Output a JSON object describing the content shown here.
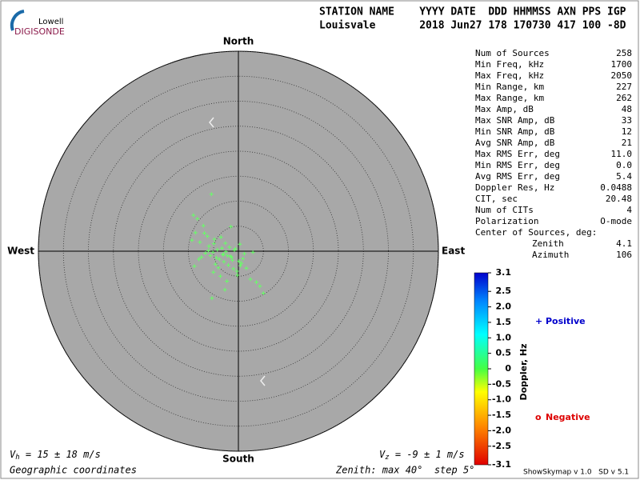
{
  "header": {
    "logo_top": "Lowell",
    "logo_bottom": "DIGISONDE",
    "line1": "STATION NAME    YYYY DATE  DDD HHMMSS AXN PPS IGP",
    "line2": "Louisvale       2018 Jun27 178 170730 417 100 -8D"
  },
  "chart_data": {
    "type": "skymap",
    "directions": {
      "north": "North",
      "south": "South",
      "east": "East",
      "west": "West"
    },
    "rlim": [
      0,
      40
    ],
    "rticks": [
      5,
      10,
      15,
      20,
      25,
      30,
      35,
      40
    ],
    "color": "#66ff66",
    "x": [
      -5.4,
      -1.5,
      -9.0,
      -8.2,
      -7.0,
      -8.6,
      -6.8,
      -9.3,
      -7.7,
      -6.2,
      -4.8,
      -5.9,
      -3.5,
      -2.6,
      -4.2,
      -1.8,
      -0.8,
      0.3,
      1.2,
      -3.0,
      -2.2,
      -5.1,
      -4.4,
      -6.6,
      -7.4,
      -1.2,
      0.6,
      1.6,
      2.4,
      3.6,
      4.3,
      5.0,
      -3.8,
      -2.9,
      -2.0,
      -1.0,
      -0.3,
      -4.6,
      -5.6,
      -3.3,
      -2.5,
      -1.6,
      -0.6,
      0.1,
      -6.0,
      -4.0,
      -7.9,
      -8.8,
      -5.0,
      -3.6,
      -2.3,
      -0.2,
      2.9,
      0.9,
      -4.9,
      -3.1,
      -1.4,
      0.4,
      -5.3,
      -2.7
    ],
    "values": [
      11.4,
      4.9,
      7.2,
      6.5,
      5.1,
      3.7,
      3.6,
      2.2,
      1.8,
      3.0,
      2.4,
      1.0,
      2.8,
      1.6,
      0.3,
      0.8,
      0.2,
      1.4,
      -0.5,
      -0.6,
      -0.9,
      -0.2,
      -1.3,
      -0.4,
      -1.2,
      -1.8,
      -2.4,
      -3.4,
      -5.6,
      -6.2,
      -7.0,
      -8.4,
      -1.6,
      -2.1,
      -2.8,
      -3.5,
      -4.0,
      -2.6,
      -0.9,
      0.6,
      -0.1,
      -1.0,
      0.5,
      -2.0,
      0.1,
      -3.3,
      -1.6,
      -3.0,
      -4.2,
      -5.0,
      -6.0,
      -4.8,
      -0.2,
      -1.5,
      1.5,
      -0.7,
      -1.2,
      -2.9,
      -9.4,
      -7.7
    ],
    "colorbar": {
      "label": "Doppler, Hz",
      "ylim": [
        -3.1,
        3.1
      ],
      "yticks": [
        3.1,
        2.5,
        {
          "value": 2,
          "label": "2.0"
        },
        1.5,
        {
          "value": 1,
          "label": "1.0"
        },
        0.5,
        0,
        -0.5,
        {
          "value": -1,
          "label": "-1.0"
        },
        -1.5,
        {
          "value": -2,
          "label": "-2.0"
        },
        -2.5,
        -3.1
      ]
    },
    "legend": [
      {
        "symbol": "+",
        "label": "Positive",
        "color": "#0000cc"
      },
      {
        "symbol": "o",
        "label": "Negative",
        "color": "#dd0000"
      }
    ]
  },
  "stats": [
    [
      "Num of Sources",
      "258"
    ],
    [
      "Min Freq, kHz",
      "1700"
    ],
    [
      "Max Freq, kHz",
      "2050"
    ],
    [
      "Min Range, km",
      "227"
    ],
    [
      "Max Range, km",
      "262"
    ],
    [
      "Max Amp, dB",
      "48"
    ],
    [
      "Max SNR Amp, dB",
      "33"
    ],
    [
      "Min SNR Amp, dB",
      "12"
    ],
    [
      "Avg SNR Amp, dB",
      "21"
    ],
    [
      "Max RMS Err, deg",
      "11.0"
    ],
    [
      "Min RMS Err, deg",
      "0.0"
    ],
    [
      "Avg RMS Err, deg",
      "5.4"
    ],
    [
      "Doppler Res, Hz",
      "0.0488"
    ],
    [
      "CIT, sec",
      "20.48"
    ],
    [
      "Num of CITs",
      "4"
    ],
    [
      "Polarization",
      "O-mode"
    ],
    [
      "Center of Sources, deg:"
    ],
    [
      "Zenith",
      "4.1"
    ],
    [
      "Azimuth",
      "106"
    ]
  ],
  "footer": {
    "vh_symbol": "V",
    "vh_sub": "h",
    "vh_text": " = 15 ± 18 m/s",
    "vz_symbol": "V",
    "vz_sub": "z",
    "vz_text": " = -9 ± 1 m/s",
    "coords": "Geographic coordinates",
    "zenith": "Zenith: max 40°  step 5°",
    "version": "ShowSkymap v 1.0   SD v 5.1"
  }
}
